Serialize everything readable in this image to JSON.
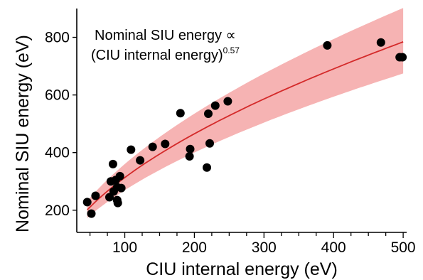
{
  "chart_data": {
    "type": "scatter",
    "xlabel": "CIU internal energy (eV)",
    "ylabel": "Nominal SIU energy (eV)",
    "xlim": [
      30,
      505
    ],
    "ylim": [
      160,
      900
    ],
    "x_ticks": [
      100,
      200,
      300,
      400,
      500
    ],
    "y_ticks": [
      200,
      400,
      600,
      800
    ],
    "x_minor_step": 25,
    "grid": false,
    "annotation": {
      "line1": "Nominal SIU energy ∝",
      "line2": "(CIU internal energy)",
      "exponent": "0.57"
    },
    "points": [
      {
        "x": 46,
        "y": 228
      },
      {
        "x": 52,
        "y": 188
      },
      {
        "x": 58,
        "y": 250
      },
      {
        "x": 78,
        "y": 245
      },
      {
        "x": 80,
        "y": 300
      },
      {
        "x": 83,
        "y": 360
      },
      {
        "x": 84,
        "y": 265
      },
      {
        "x": 87,
        "y": 305
      },
      {
        "x": 89,
        "y": 280
      },
      {
        "x": 89,
        "y": 235
      },
      {
        "x": 90,
        "y": 225
      },
      {
        "x": 93,
        "y": 318
      },
      {
        "x": 95,
        "y": 277
      },
      {
        "x": 109,
        "y": 410
      },
      {
        "x": 122,
        "y": 373
      },
      {
        "x": 140,
        "y": 420
      },
      {
        "x": 158,
        "y": 430
      },
      {
        "x": 180,
        "y": 537
      },
      {
        "x": 193,
        "y": 387
      },
      {
        "x": 194,
        "y": 412
      },
      {
        "x": 218,
        "y": 348
      },
      {
        "x": 220,
        "y": 535
      },
      {
        "x": 222,
        "y": 432
      },
      {
        "x": 230,
        "y": 563
      },
      {
        "x": 248,
        "y": 578
      },
      {
        "x": 391,
        "y": 772
      },
      {
        "x": 468,
        "y": 782
      },
      {
        "x": 495,
        "y": 731
      },
      {
        "x": 499,
        "y": 731
      }
    ],
    "fit": {
      "type": "power",
      "exponent": 0.57,
      "coefficient": 22.7,
      "band_lower_factor": 0.86,
      "band_upper_factor": 1.15,
      "x_range": [
        46,
        500
      ],
      "line_color": "#d42a2a",
      "band_color": "#f4a6a6"
    },
    "point_color": "#000000"
  }
}
